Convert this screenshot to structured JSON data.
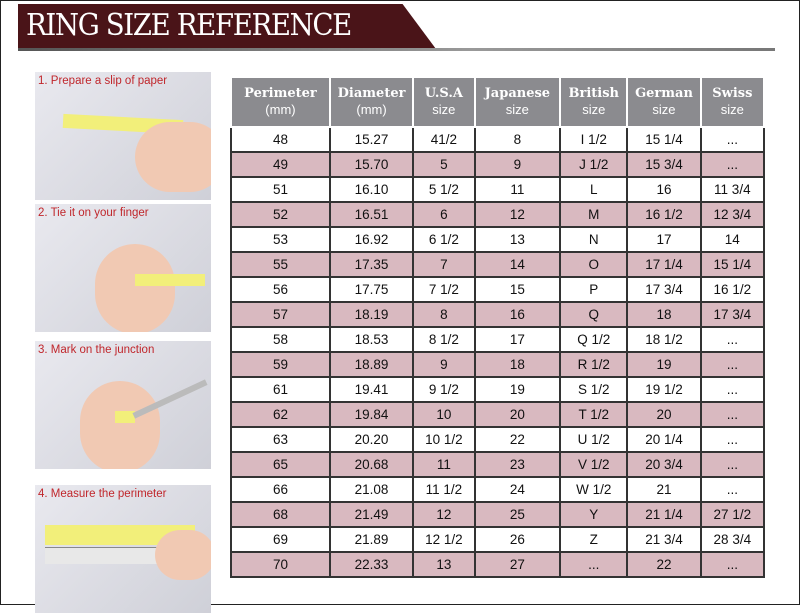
{
  "title": "RING SIZE REFERENCE",
  "steps": [
    {
      "label": "1. Prepare a slip of paper"
    },
    {
      "label": "2. Tie it on your finger"
    },
    {
      "label": "3. Mark on the junction"
    },
    {
      "label": "4. Measure the perimeter"
    }
  ],
  "colors": {
    "banner": "#4a1418",
    "header": "#8b8b8f",
    "alt_row": "#d9b9c0",
    "step_text": "#c0262b"
  },
  "table": {
    "headers": [
      {
        "title": "Perimeter",
        "unit": "(mm)"
      },
      {
        "title": "Diameter",
        "unit": "(mm)"
      },
      {
        "title": "U.S.A",
        "unit": "size"
      },
      {
        "title": "Japanese",
        "unit": "size"
      },
      {
        "title": "British",
        "unit": "size"
      },
      {
        "title": "German",
        "unit": "size"
      },
      {
        "title": "Swiss",
        "unit": "size"
      }
    ],
    "rows": [
      [
        "48",
        "15.27",
        "41/2",
        "8",
        "I 1/2",
        "15 1/4",
        "..."
      ],
      [
        "49",
        "15.70",
        "5",
        "9",
        "J 1/2",
        "15 3/4",
        "..."
      ],
      [
        "51",
        "16.10",
        "5 1/2",
        "11",
        "L",
        "16",
        "11 3/4"
      ],
      [
        "52",
        "16.51",
        "6",
        "12",
        "M",
        "16 1/2",
        "12 3/4"
      ],
      [
        "53",
        "16.92",
        "6 1/2",
        "13",
        "N",
        "17",
        "14"
      ],
      [
        "55",
        "17.35",
        "7",
        "14",
        "O",
        "17 1/4",
        "15 1/4"
      ],
      [
        "56",
        "17.75",
        "7 1/2",
        "15",
        "P",
        "17 3/4",
        "16 1/2"
      ],
      [
        "57",
        "18.19",
        "8",
        "16",
        "Q",
        "18",
        "17 3/4"
      ],
      [
        "58",
        "18.53",
        "8 1/2",
        "17",
        "Q  1/2",
        "18 1/2",
        "..."
      ],
      [
        "59",
        "18.89",
        "9",
        "18",
        "R 1/2",
        "19",
        "..."
      ],
      [
        "61",
        "19.41",
        "9 1/2",
        "19",
        "S 1/2",
        "19 1/2",
        "..."
      ],
      [
        "62",
        "19.84",
        "10",
        "20",
        "T 1/2",
        "20",
        "..."
      ],
      [
        "63",
        "20.20",
        "10 1/2",
        "22",
        "U 1/2",
        "20 1/4",
        "..."
      ],
      [
        "65",
        "20.68",
        "11",
        "23",
        "V 1/2",
        "20 3/4",
        "..."
      ],
      [
        "66",
        "21.08",
        "11 1/2",
        "24",
        "W 1/2",
        "21",
        "..."
      ],
      [
        "68",
        "21.49",
        "12",
        "25",
        "Y",
        "21 1/4",
        "27 1/2"
      ],
      [
        "69",
        "21.89",
        "12 1/2",
        "26",
        "Z",
        "21 3/4",
        "28 3/4"
      ],
      [
        "70",
        "22.33",
        "13",
        "27",
        "...",
        "22",
        "..."
      ]
    ]
  }
}
